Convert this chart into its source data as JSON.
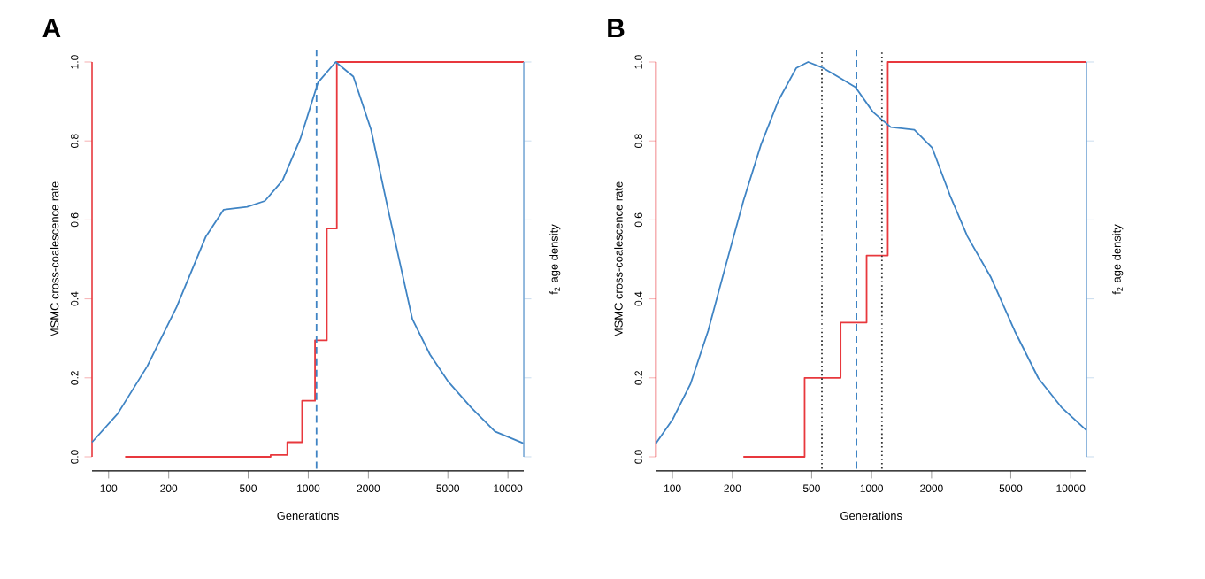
{
  "chart_data": [
    {
      "type": "step",
      "title": "A",
      "xlabel": "Generations",
      "ylabel": "MSMC cross-coalescence rate",
      "y2label": "f$_{2}$ age density",
      "log": "x",
      "xlim": [
        82.6,
        12000
      ],
      "xticks": [
        100,
        200,
        500,
        1000,
        2000,
        5000,
        10000
      ],
      "ylim": [
        0,
        1
      ],
      "yticks": [
        {
          "value": 0,
          "label": "0.0"
        },
        {
          "value": 0.2,
          "label": "0.2"
        },
        {
          "value": 0.4,
          "label": "0.4"
        },
        {
          "value": 0.6,
          "label": "0.6"
        },
        {
          "value": 0.8,
          "label": "0.8"
        },
        {
          "value": 1,
          "label": "1.0"
        }
      ],
      "series": [
        {
          "color": "#e8383d",
          "x": [
            121,
            648,
            785,
            931,
            1081,
            1239,
            1390,
            12000
          ],
          "values": [
            0,
            0.005,
            0.037,
            0.142,
            0.295,
            0.578,
            1,
            1
          ]
        },
        {
          "type": "line",
          "color": "#3f84c4",
          "x": [
            82.6,
            111,
            156,
            219,
            307,
            377,
            494,
            606,
            743,
            912,
            1119,
            1372,
            1682,
            2064,
            2531,
            3320,
            4070,
            4995,
            6560,
            8610,
            12000
          ],
          "values": [
            0.037,
            0.109,
            0.229,
            0.379,
            0.558,
            0.626,
            0.633,
            0.648,
            0.7,
            0.805,
            0.948,
            1.0,
            0.963,
            0.828,
            0.618,
            0.349,
            0.259,
            0.192,
            0.124,
            0.064,
            0.034
          ]
        }
      ],
      "ref_lines": [
        {
          "axis": "x",
          "value": 1100,
          "color": "#3f84c4",
          "line_style": "dashed"
        }
      ]
    },
    {
      "type": "step",
      "title": "B",
      "xlabel": "Generations",
      "ylabel": "MSMC cross-coalescence rate",
      "y2label": "f$_{2}$ age density",
      "log": "x",
      "xlim": [
        82.6,
        12000
      ],
      "xticks": [
        100,
        200,
        500,
        1000,
        2000,
        5000,
        10000
      ],
      "ylim": [
        0,
        1
      ],
      "yticks": [
        {
          "value": 0,
          "label": "0.0"
        },
        {
          "value": 0.2,
          "label": "0.2"
        },
        {
          "value": 0.4,
          "label": "0.4"
        },
        {
          "value": 0.6,
          "label": "0.6"
        },
        {
          "value": 0.8,
          "label": "0.8"
        },
        {
          "value": 1,
          "label": "1.0"
        }
      ],
      "series": [
        {
          "color": "#e8383d",
          "x": [
            227,
            461,
            699,
            944,
            1206,
            12000
          ],
          "values": [
            0,
            0.2,
            0.34,
            0.51,
            1,
            1
          ]
        },
        {
          "type": "line",
          "color": "#3f84c4",
          "x": [
            82.6,
            100,
            123,
            151,
            185,
            227,
            278,
            341,
            419,
            480,
            570,
            676,
            830,
            1017,
            1248,
            1640,
            2014,
            2472,
            3030,
            3980,
            5230,
            6880,
            9040,
            12000
          ],
          "values": [
            0.034,
            0.094,
            0.184,
            0.319,
            0.484,
            0.648,
            0.79,
            0.903,
            0.985,
            1.0,
            0.985,
            0.963,
            0.936,
            0.873,
            0.835,
            0.828,
            0.783,
            0.663,
            0.558,
            0.454,
            0.319,
            0.199,
            0.124,
            0.067
          ]
        }
      ],
      "ref_lines": [
        {
          "axis": "x",
          "value": 563,
          "color": "#333333",
          "line_style": "dotted"
        },
        {
          "axis": "x",
          "value": 1127,
          "color": "#333333",
          "line_style": "dotted"
        },
        {
          "axis": "x",
          "value": 840,
          "color": "#3f84c4",
          "line_style": "dashed"
        }
      ]
    }
  ]
}
